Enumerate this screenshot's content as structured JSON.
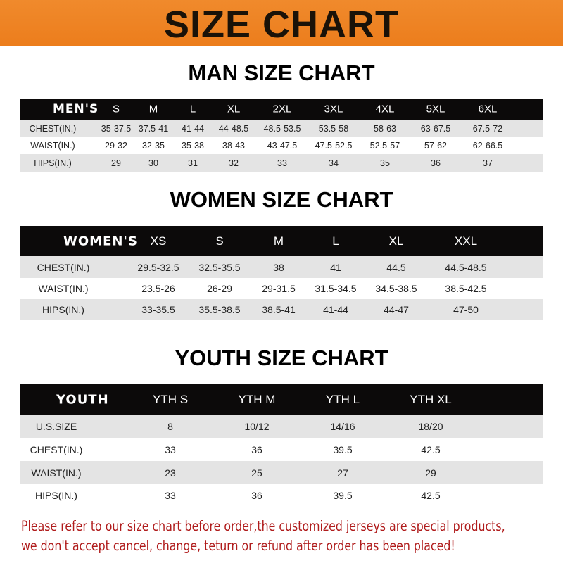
{
  "title": "SIZE CHART",
  "sections": [
    {
      "title": "MAN SIZE CHART",
      "header": [
        "MEN'S",
        "S",
        "M",
        "L",
        "XL",
        "2XL",
        "3XL",
        "4XL",
        "5XL",
        "6XL"
      ],
      "rows": [
        [
          "CHEST(IN.)",
          "35-37.5",
          "37.5-41",
          "41-44",
          "44-48.5",
          "48.5-53.5",
          "53.5-58",
          "58-63",
          "63-67.5",
          "67.5-72"
        ],
        [
          "WAIST(IN.)",
          "29-32",
          "32-35",
          "35-38",
          "38-43",
          "43-47.5",
          "47.5-52.5",
          "52.5-57",
          "57-62",
          "62-66.5"
        ],
        [
          "HIPS(IN.)",
          "29",
          "30",
          "31",
          "32",
          "33",
          "34",
          "35",
          "36",
          "37"
        ]
      ]
    },
    {
      "title": "WOMEN SIZE CHART",
      "header": [
        "WOMEN'S",
        "XS",
        "S",
        "M",
        "L",
        "XL",
        "XXL"
      ],
      "rows": [
        [
          "CHEST(IN.)",
          "29.5-32.5",
          "32.5-35.5",
          "38",
          "41",
          "44.5",
          "44.5-48.5"
        ],
        [
          "WAIST(IN.)",
          "23.5-26",
          "26-29",
          "29-31.5",
          "31.5-34.5",
          "34.5-38.5",
          "38.5-42.5"
        ],
        [
          "HIPS(IN.)",
          "33-35.5",
          "35.5-38.5",
          "38.5-41",
          "41-44",
          "44-47",
          "47-50"
        ]
      ]
    },
    {
      "title": "YOUTH SIZE CHART",
      "header": [
        "YOUTH",
        "YTH S",
        "YTH M",
        "YTH L",
        "YTH XL"
      ],
      "rows": [
        [
          "U.S.SIZE",
          "8",
          "10/12",
          "14/16",
          "18/20"
        ],
        [
          "CHEST(IN.)",
          "33",
          "36",
          "39.5",
          "42.5"
        ],
        [
          "WAIST(IN.)",
          "23",
          "25",
          "27",
          "29"
        ],
        [
          "HIPS(IN.)",
          "33",
          "36",
          "39.5",
          "42.5"
        ]
      ]
    }
  ],
  "note_lines": [
    "Please refer to our size chart before order,the customized jerseys are special products,",
    "we don't accept cancel, change, teturn or refund after order has been placed!"
  ],
  "colors": {
    "banner": "#ec7d1c",
    "header": "#0c0a0a",
    "stripe": "#e4e4e4",
    "note": "#b01c1c"
  }
}
